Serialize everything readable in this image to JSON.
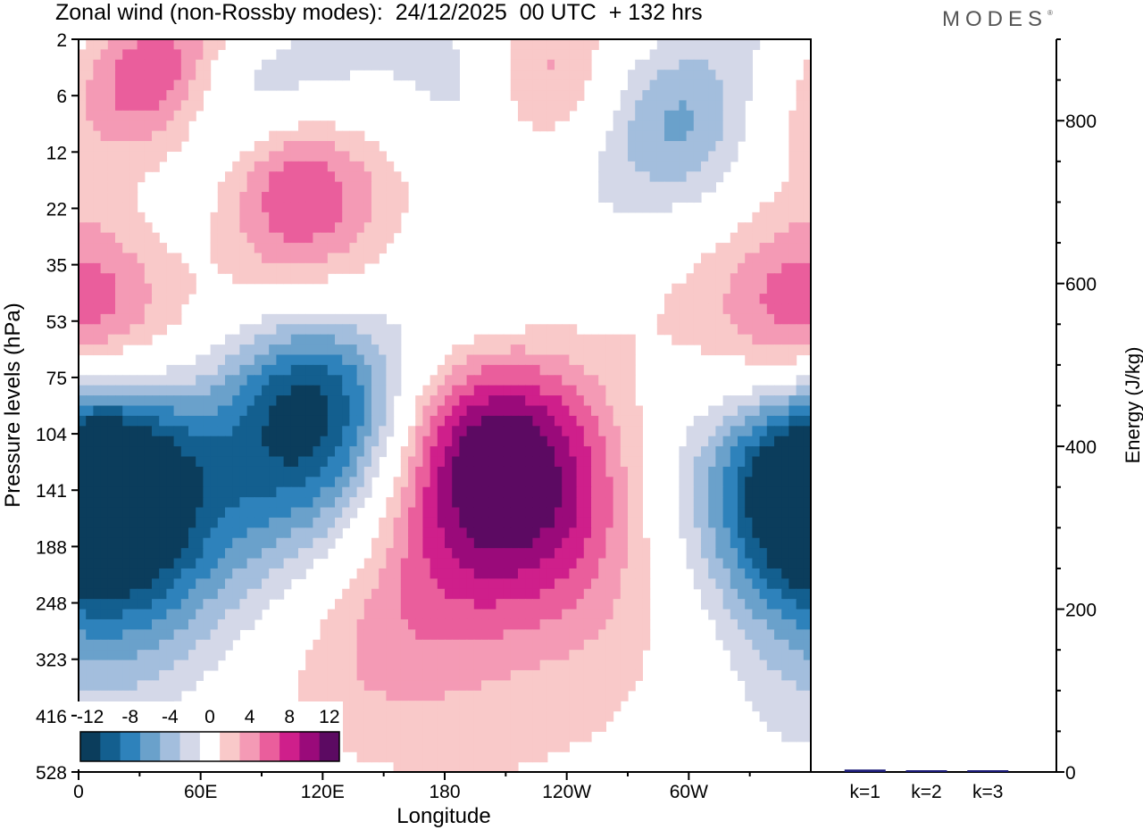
{
  "title": "Zonal wind (non-Rossby modes):  24/12/2025  00 UTC  + 132 hrs",
  "brand": "MODES",
  "brand_mark": "®",
  "colors": {
    "levels": [
      "#0b3d5c",
      "#135f8f",
      "#2e82bb",
      "#6aa1cb",
      "#a3bedd",
      "#d4d8e8",
      "#ffffff",
      "#f9c9c9",
      "#f49ab5",
      "#ea5e9c",
      "#cf1f8b",
      "#9a0a7a",
      "#5c0a62"
    ],
    "bar": "#1c1c7a"
  },
  "chart_data": [
    {
      "type": "heatmap",
      "title": "Zonal wind (non-Rossby modes)",
      "xlabel": "Longitude",
      "ylabel": "Pressure levels (hPa)",
      "x_ticks": [
        "0",
        "60E",
        "120E",
        "180",
        "120W",
        "60W"
      ],
      "x_tick_lon": [
        0,
        60,
        120,
        180,
        240,
        300
      ],
      "xlim": [
        0,
        360
      ],
      "y_ticks": [
        "2",
        "6",
        "12",
        "22",
        "35",
        "53",
        "75",
        "104",
        "141",
        "188",
        "248",
        "323",
        "416",
        "528"
      ],
      "colorbar_labels": [
        "-12",
        "-8",
        "-4",
        "0",
        "4",
        "8",
        "12"
      ],
      "colorbar_levels": [
        -12,
        -10,
        -8,
        -6,
        -4,
        -2,
        0,
        2,
        4,
        6,
        8,
        10,
        12
      ],
      "features": [
        {
          "lon": 18,
          "level": 7.8,
          "value": -15
        },
        {
          "lon": 110,
          "level": 6.6,
          "value": -13
        },
        {
          "lon": 100,
          "level": 2.4,
          "value": 10
        },
        {
          "lon": 40,
          "level": 0.8,
          "value": 6
        },
        {
          "lon": 200,
          "level": 7.4,
          "value": 12
        },
        {
          "lon": 240,
          "level": 8.8,
          "value": 6
        },
        {
          "lon": 195,
          "level": 1.0,
          "value": -6
        },
        {
          "lon": 80,
          "level": 1.4,
          "value": -5
        },
        {
          "lon": 15,
          "level": 4.5,
          "value": 5
        },
        {
          "lon": 300,
          "level": 1.8,
          "value": -5
        },
        {
          "lon": 355,
          "level": 8.2,
          "value": -10
        },
        {
          "lon": 350,
          "level": 5.3,
          "value": 6
        },
        {
          "lon": 225,
          "level": 1.1,
          "value": 5
        },
        {
          "lon": 160,
          "level": 11.0,
          "value": 4
        }
      ]
    },
    {
      "type": "bar",
      "ylabel": "Energy (J/kg)",
      "ylim": [
        0,
        900
      ],
      "y_ticks": [
        "0",
        "200",
        "400",
        "600",
        "800"
      ],
      "y_tick_values": [
        0,
        200,
        400,
        600,
        800
      ],
      "categories": [
        "k=1",
        "k=2",
        "k=3"
      ],
      "values": [
        3,
        1,
        1.5
      ]
    }
  ]
}
